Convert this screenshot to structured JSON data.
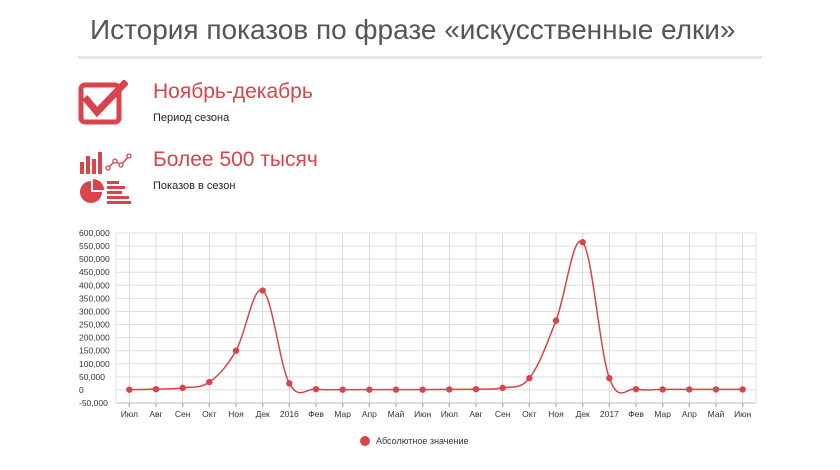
{
  "header": {
    "title": "История показов по фразе «искусственные елки»"
  },
  "stats": [
    {
      "icon": "checkbox-check-icon",
      "headline": "Ноябрь-декабрь",
      "caption": "Период сезона"
    },
    {
      "icon": "analytics-charts-icon",
      "headline": "Более 500 тысяч",
      "caption": "Показов в сезон"
    }
  ],
  "colors": {
    "accent": "#d9434c",
    "grid": "#dddddd",
    "title": "#555555"
  },
  "chart_data": {
    "type": "line",
    "title": "",
    "xlabel": "",
    "ylabel": "",
    "categories": [
      "Июл",
      "Авг",
      "Сен",
      "Окт",
      "Ноя",
      "Дек",
      "2016",
      "Фев",
      "Мар",
      "Апр",
      "Май",
      "Июн",
      "Июл",
      "Авг",
      "Сен",
      "Окт",
      "Ноя",
      "Дек",
      "2017",
      "Фев",
      "Мар",
      "Апр",
      "Май",
      "Июн"
    ],
    "series": [
      {
        "name": "Абсолютное значение",
        "values": [
          1000,
          3000,
          8000,
          30000,
          150000,
          380000,
          25000,
          3000,
          1000,
          1000,
          1000,
          1000,
          2000,
          3000,
          8000,
          45000,
          265000,
          565000,
          45000,
          3000,
          2000,
          2000,
          2000,
          2000
        ]
      }
    ],
    "yticks": [
      600000,
      550000,
      500000,
      450000,
      400000,
      350000,
      300000,
      250000,
      200000,
      150000,
      100000,
      50000,
      0,
      -50000
    ],
    "ytick_labels": [
      "600,000",
      "550,000",
      "500,000",
      "450,000",
      "400,000",
      "350,000",
      "300,000",
      "250,000",
      "200,000",
      "150,000",
      "100,000",
      "50,000",
      "0",
      "-50,000"
    ],
    "ylim": [
      -50000,
      600000
    ],
    "grid": true,
    "legend": "bottom-center",
    "legend_label": "Абсолютное значение"
  }
}
